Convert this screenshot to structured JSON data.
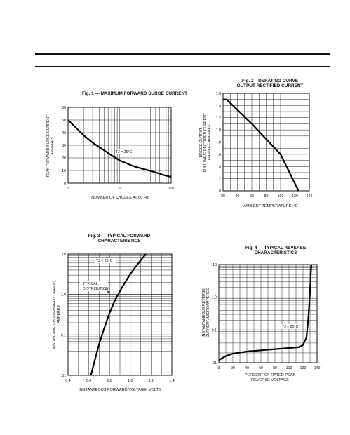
{
  "chart_data": [
    {
      "type": "line",
      "title": "Fig. 1 — MAXIMUM FORWARD SURGE CURRENT",
      "xlabel": "NUMBER OF CYCLES AT 60 Hz",
      "ylabel": [
        "PEAK FORWARD SURGE CURRENT",
        "AMPERES"
      ],
      "x_scale": "log",
      "xlim": [
        1,
        100
      ],
      "ylim": [
        0,
        60
      ],
      "x_ticks": [
        "1",
        "10",
        "100"
      ],
      "y_ticks": [
        "0",
        "10",
        "20",
        "30",
        "40",
        "50",
        "60"
      ],
      "annotation": "TJ = 25°C",
      "grid": true,
      "series": [
        {
          "x": [
            1,
            1.5,
            2,
            3,
            5,
            7,
            10,
            15,
            20,
            30,
            50,
            70,
            100
          ],
          "y": [
            50,
            43,
            38,
            32,
            26,
            22,
            18,
            15,
            13,
            11,
            8.5,
            6.5,
            5
          ]
        }
      ]
    },
    {
      "type": "line",
      "title": "Fig. 2—DERATING CURVE\nOUTPUT RECTIFIED CURRENT",
      "xlabel": "AMBIENT TEMPERATURE, °C",
      "ylabel": [
        "BRIDGE OUTPUT",
        "FULL WAVE RECTIFIED CURRENT",
        "AVERAGE AMPERES"
      ],
      "xlim": [
        20,
        140
      ],
      "ylim": [
        0,
        1.6
      ],
      "x_ticks": [
        "20",
        "40",
        "60",
        "80",
        "100",
        "120",
        "140"
      ],
      "y_ticks": [
        ".0",
        ".2",
        ".4",
        ".6",
        ".8",
        "1.0",
        "1.2",
        "1.4",
        "1.6"
      ],
      "grid": true,
      "series": [
        {
          "x": [
            20,
            25,
            60,
            100,
            125
          ],
          "y": [
            1.5,
            1.5,
            1.1,
            0.6,
            0.0
          ]
        }
      ]
    },
    {
      "type": "line",
      "title": "Fig. 3 — TYPICAL FORWARD\nCHARACTERISTICS",
      "xlabel": "INSTANTEOUS FORWARD VOLTAGE, VOLTS",
      "ylabel": [
        "INSTANTANEOUS FORWARD CURRENT,",
        "AMPERES"
      ],
      "y_scale": "log",
      "xlim": [
        0.4,
        1.4
      ],
      "ylim": [
        0.01,
        10
      ],
      "x_ticks": [
        "0.4",
        "0.6",
        "0.8",
        "1.0",
        "1.2",
        "1.4"
      ],
      "y_ticks": [
        ".01",
        "0.1",
        "1.0",
        "10"
      ],
      "annotations": [
        "TJ = 25°C",
        "TYPICAL\nDISTRIBUTION"
      ],
      "grid": true,
      "series": [
        {
          "x": [
            0.62,
            0.66,
            0.7,
            0.75,
            0.8,
            0.85,
            0.9,
            0.95,
            1.0,
            1.05,
            1.1,
            1.15
          ],
          "y": [
            0.01,
            0.025,
            0.06,
            0.15,
            0.35,
            0.7,
            1.2,
            2.0,
            3.2,
            4.8,
            7.0,
            10
          ]
        }
      ]
    },
    {
      "type": "line",
      "title": "Fig. 4 — TYPICAL REVERSE\nCHARACTERISTICS",
      "xlabel": "PERCENT OF RATED PEAK\nREVERSE VOLTAGE",
      "ylabel": [
        "INSTANTANEOUS REVERSE",
        "CURRENT, MICROAMPERES"
      ],
      "y_scale": "log",
      "xlim": [
        0,
        140
      ],
      "ylim": [
        0.01,
        10
      ],
      "x_ticks": [
        "0",
        "20",
        "40",
        "60",
        "80",
        "100",
        "120",
        "140"
      ],
      "y_ticks": [
        ".01",
        "0.1",
        "1.0",
        "10"
      ],
      "annotation": "TJ = 25°C",
      "grid": true,
      "series": [
        {
          "x": [
            0,
            5,
            10,
            20,
            40,
            60,
            80,
            100,
            115,
            120,
            125,
            128,
            130,
            131,
            132
          ],
          "y": [
            0.012,
            0.014,
            0.016,
            0.019,
            0.022,
            0.024,
            0.026,
            0.028,
            0.03,
            0.035,
            0.06,
            0.3,
            1.5,
            5,
            10
          ]
        }
      ]
    }
  ]
}
